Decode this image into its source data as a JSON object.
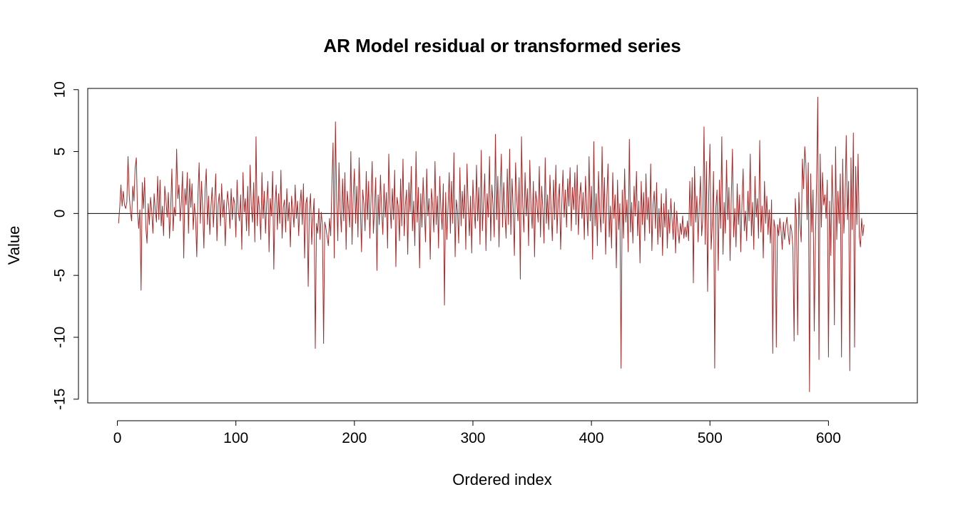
{
  "chart_data": {
    "type": "line",
    "title": "AR Model residual or transformed series",
    "xlabel": "Ordered index",
    "ylabel": "Value",
    "xlim": [
      -25,
      675
    ],
    "ylim": [
      -15.3,
      10.1
    ],
    "x_ticks": [
      0,
      100,
      200,
      300,
      400,
      500,
      600
    ],
    "y_ticks": [
      -15,
      -10,
      -5,
      0,
      5,
      10
    ],
    "hline": 0,
    "grid": false,
    "legend": "none",
    "colors": {
      "series": "#A52A2A",
      "reference_line": "#000000",
      "axes": "#000000"
    },
    "series": [
      {
        "x_start": 1,
        "x_step": 1,
        "values": [
          -0.8,
          0.5,
          2.3,
          0.6,
          1.8,
          0.7,
          0.4,
          0.9,
          4.6,
          1.5,
          0.2,
          -0.6,
          2.2,
          1.0,
          3.7,
          4.5,
          0.1,
          -1.2,
          0.3,
          -6.2,
          2.5,
          0.4,
          2.9,
          -1.1,
          -2.4,
          0.8,
          -0.9,
          1.3,
          0.2,
          -1.6,
          1.6,
          0.3,
          -0.7,
          3.0,
          -0.5,
          2.7,
          -1.0,
          0.6,
          -1.8,
          2.2,
          1.1,
          -0.3,
          1.7,
          -2.0,
          0.4,
          3.6,
          -1.4,
          0.5,
          -0.2,
          5.2,
          1.2,
          2.3,
          -0.6,
          0.9,
          3.4,
          -3.6,
          2.0,
          0.7,
          3.3,
          -1.6,
          2.8,
          0.5,
          2.4,
          -1.3,
          0.8,
          -0.4,
          -3.5,
          1.5,
          4.1,
          -0.8,
          2.6,
          0.3,
          -2.8,
          1.9,
          3.6,
          -0.9,
          1.4,
          -1.7,
          0.6,
          2.1,
          -1.1,
          0.9,
          3.2,
          -2.2,
          0.7,
          1.6,
          -1.0,
          2.4,
          -0.3,
          1.1,
          -2.6,
          0.4,
          1.8,
          0.6,
          -1.2,
          2.0,
          -0.5,
          1.3,
          0.8,
          -1.9,
          2.7,
          0.2,
          -0.6,
          1.5,
          -2.9,
          3.3,
          0.1,
          1.2,
          -1.4,
          2.2,
          -1.8,
          3.9,
          0.6,
          -0.7,
          2.5,
          -2.3,
          6.2,
          -1.0,
          1.4,
          0.3,
          -2.1,
          3.3,
          -0.4,
          1.8,
          -1.6,
          0.9,
          2.6,
          -3.1,
          1.2,
          -0.2,
          3.4,
          -4.5,
          0.7,
          2.3,
          -1.3,
          1.6,
          -0.8,
          3.5,
          -2.0,
          0.5,
          1.1,
          -1.5,
          2.0,
          -0.6,
          0.9,
          -2.7,
          1.4,
          0.3,
          -1.1,
          2.3,
          -0.4,
          1.0,
          -1.8,
          0.6,
          1.9,
          -0.9,
          2.4,
          -3.6,
          0.8,
          1.3,
          -5.9,
          0.2,
          1.6,
          -2.5,
          -0.3,
          1.2,
          -10.9,
          -0.8,
          -1.6,
          0.4,
          -2.1,
          0.1,
          -0.9,
          -10.5,
          -0.7,
          -1.2,
          -1.9,
          -2.6,
          -0.4,
          -1.8,
          2.3,
          5.7,
          -3.6,
          7.4,
          1.2,
          -2.2,
          4.1,
          0.3,
          -1.5,
          2.8,
          -0.6,
          3.3,
          -2.9,
          1.8,
          0.5,
          -1.1,
          5.0,
          -2.5,
          1.4,
          3.6,
          -0.8,
          2.2,
          -1.9,
          4.5,
          0.6,
          -3.1,
          1.9,
          0.8,
          -1.4,
          3.4,
          -0.5,
          2.6,
          -2.0,
          1.1,
          4.2,
          -1.6,
          0.4,
          2.9,
          -4.6,
          1.5,
          -0.9,
          3.1,
          0.2,
          -1.7,
          2.4,
          -0.3,
          1.7,
          -2.8,
          4.8,
          0.9,
          -1.2,
          2.0,
          -0.5,
          3.5,
          -4.3,
          1.3,
          0.6,
          -2.2,
          2.8,
          -1.0,
          4.4,
          -1.8,
          0.7,
          1.9,
          -3.3,
          2.5,
          0.1,
          3.8,
          -1.4,
          1.0,
          -2.6,
          5.0,
          -0.7,
          2.1,
          -4.4,
          1.6,
          -1.1,
          2.9,
          0.4,
          -2.3,
          3.6,
          -0.2,
          1.2,
          -3.7,
          2.0,
          0.8,
          -1.5,
          4.2,
          -0.9,
          1.4,
          -2.8,
          3.0,
          0.3,
          -1.3,
          2.4,
          -7.4,
          1.7,
          -2.1,
          0.5,
          3.3,
          -1.6,
          2.6,
          -0.8,
          4.9,
          -3.5,
          1.1,
          0.2,
          -2.4,
          3.7,
          -1.0,
          1.8,
          -0.4,
          2.3,
          -2.9,
          4.0,
          0.6,
          -1.8,
          1.4,
          -3.2,
          2.7,
          0.4,
          -1.2,
          3.9,
          -0.6,
          2.1,
          -2.5,
          5.1,
          -1.4,
          0.9,
          3.2,
          -3.0,
          1.6,
          -0.3,
          4.6,
          -2.2,
          2.3,
          0.7,
          -1.9,
          6.4,
          -0.5,
          3.0,
          -2.7,
          1.9,
          4.8,
          -1.1,
          2.5,
          0.1,
          -2.0,
          3.6,
          -0.9,
          5.2,
          -1.7,
          2.8,
          0.3,
          -3.4,
          4.1,
          1.2,
          -0.6,
          2.9,
          -5.3,
          6.2,
          0.8,
          -1.5,
          3.3,
          -0.2,
          2.0,
          -2.6,
          4.3,
          0.5,
          -1.2,
          2.6,
          -3.5,
          1.8,
          0.9,
          -0.7,
          3.8,
          -1.9,
          2.2,
          0.4,
          -2.4,
          4.5,
          -0.8,
          1.5,
          -1.3,
          3.1,
          0.2,
          -2.2,
          2.7,
          -0.5,
          3.9,
          -1.6,
          1.1,
          2.4,
          -2.9,
          0.7,
          3.5,
          -0.3,
          1.9,
          -1.1,
          2.8,
          0.6,
          3.7,
          -1.4,
          2.1,
          0.3,
          3.3,
          -0.9,
          3.9,
          -1.7,
          1.3,
          2.5,
          -0.4,
          1.7,
          -2.1,
          3.0,
          0.5,
          -1.8,
          4.6,
          -0.6,
          2.2,
          -3.7,
          5.8,
          -1.0,
          1.6,
          -2.6,
          3.4,
          0.2,
          -1.5,
          5.4,
          -0.8,
          2.9,
          -3.3,
          1.2,
          4.0,
          -1.9,
          0.6,
          -2.8,
          3.3,
          -0.4,
          1.5,
          -4.4,
          2.7,
          -1.3,
          0.8,
          -12.5,
          1.9,
          -2.0,
          3.6,
          -0.7,
          1.1,
          -3.1,
          6.0,
          -1.5,
          0.9,
          -2.4,
          2.2,
          -0.2,
          3.4,
          -1.8,
          1.0,
          -4.0,
          2.6,
          -0.9,
          1.7,
          -2.2,
          3.2,
          -0.5,
          1.3,
          -1.6,
          4.0,
          -3.0,
          0.7,
          1.8,
          -1.2,
          2.5,
          -2.5,
          0.4,
          -1.9,
          1.6,
          -3.4,
          0.8,
          -1.1,
          2.0,
          -2.8,
          0.3,
          -1.6,
          1.2,
          -0.5,
          -2.1,
          0.9,
          -3.2,
          0.2,
          -1.3,
          -2.4,
          -0.8,
          -1.7,
          -0.2,
          -2.0,
          -1.1,
          -1.9,
          -0.6,
          -2.2,
          2.6,
          -1.0,
          2.9,
          -5.6,
          3.8,
          -0.7,
          1.4,
          -2.3,
          0.6,
          3.0,
          -1.8,
          -0.4,
          7.0,
          -2.5,
          4.2,
          -6.3,
          1.6,
          5.6,
          -2.9,
          -0.8,
          3.4,
          -12.5,
          0.5,
          1.9,
          -4.6,
          2.7,
          -1.2,
          6.2,
          -3.3,
          0.9,
          -1.6,
          4.3,
          -0.5,
          2.1,
          -3.8,
          1.3,
          5.2,
          -1.9,
          0.4,
          -2.7,
          2.4,
          -0.9,
          1.5,
          -3.1,
          0.7,
          3.6,
          -1.4,
          0.2,
          -2.2,
          1.8,
          -0.6,
          4.8,
          -1.8,
          0.9,
          -2.9,
          3.0,
          -0.3,
          1.2,
          -2.0,
          5.9,
          -1.5,
          0.6,
          -3.6,
          2.6,
          -0.8,
          1.4,
          -1.7,
          0.3,
          -2.4,
          1.1,
          -11.3,
          -0.5,
          -1.2,
          -10.8,
          -0.9,
          -1.8,
          -0.4,
          -1.4,
          -2.9,
          -0.7,
          -2.1,
          -1.0,
          -0.3,
          -1.6,
          -2.5,
          -0.9,
          -1.4,
          -2.8,
          -10.3,
          1.2,
          -0.6,
          -9.8,
          1.7,
          -0.8,
          -2.3,
          4.4,
          2.0,
          5.4,
          3.9,
          -0.5,
          4.1,
          -14.4,
          3.2,
          -1.5,
          1.9,
          -9.5,
          -2.2,
          2.6,
          9.4,
          -11.8,
          4.8,
          -1.1,
          3.3,
          0.7,
          1.5,
          -0.4,
          2.7,
          -11.6,
          1.0,
          -3.4,
          3.9,
          0.5,
          -9.0,
          5.4,
          -2.1,
          1.8,
          -0.8,
          3.2,
          -11.6,
          4.4,
          -1.6,
          0.9,
          6.3,
          -0.5,
          2.6,
          -12.7,
          4.5,
          -1.3,
          6.5,
          -10.8,
          3.8,
          -0.9,
          4.8,
          -1.9,
          -2.7,
          -0.4,
          -1.8,
          -0.9
        ]
      }
    ]
  }
}
